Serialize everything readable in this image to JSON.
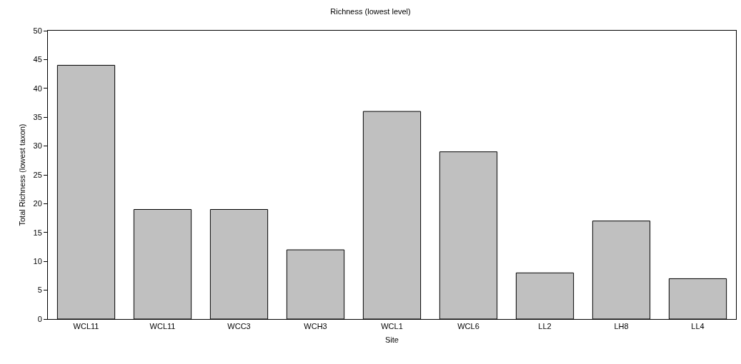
{
  "chart_data": {
    "type": "bar",
    "title": "Richness (lowest level)",
    "xlabel": "Site",
    "ylabel": "Total Richness (lowest taxon)",
    "categories": [
      "WCL11",
      "WCL11",
      "WCC3",
      "WCH3",
      "WCL1",
      "WCL6",
      "LL2",
      "LH8",
      "LL4"
    ],
    "values": [
      44,
      19,
      19,
      12,
      36,
      29,
      8,
      17,
      7
    ],
    "color": "#c0c0c0",
    "ylim": [
      0,
      50
    ],
    "yticks": [
      0,
      5,
      10,
      15,
      20,
      25,
      30,
      35,
      40,
      45,
      50
    ],
    "grid": false
  }
}
